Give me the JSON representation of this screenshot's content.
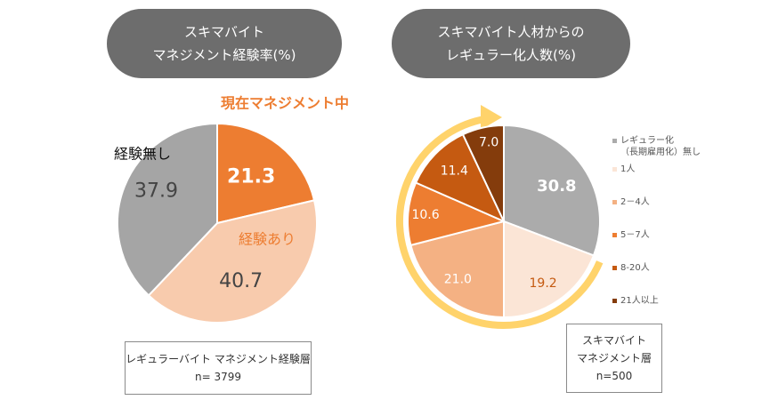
{
  "left_panel": {
    "title_line1": "スキマバイト",
    "title_line2": "マネジメント経験率(%)",
    "footnote_line1": "レギュラーバイト マネジメント経験層",
    "footnote_line2": "n= 3799"
  },
  "right_panel": {
    "title_line1": "スキマバイト人材からの",
    "title_line2": "レギュラー化人数(%)",
    "footnote_line1": "スキマバイト",
    "footnote_line2": "マネジメント層",
    "footnote_line3": "n=500"
  },
  "chart_data": [
    {
      "type": "pie",
      "title": "スキマバイト マネジメント経験率(%)",
      "slices": [
        {
          "label": "現在マネジメント中",
          "value": 21.3,
          "color": "#ed7d31"
        },
        {
          "label": "経験あり",
          "value": 40.7,
          "color": "#f8cbad"
        },
        {
          "label": "経験無し",
          "value": 37.9,
          "color": "#a5a5a5"
        }
      ],
      "annotations": [
        "現在マネジメント中",
        "経験あり",
        "経験無し"
      ],
      "note": "レギュラーバイト マネジメント経験層 n= 3799"
    },
    {
      "type": "pie",
      "title": "スキマバイト人材からのレギュラー化人数(%)",
      "slices": [
        {
          "label": "レギュラー化（長期雇用化）無し",
          "value": 30.8,
          "color": "#ababab"
        },
        {
          "label": "1人",
          "value": 19.2,
          "color": "#fbe5d6"
        },
        {
          "label": "2－4人",
          "value": 21.0,
          "color": "#f4b183"
        },
        {
          "label": "5－7人",
          "value": 10.6,
          "color": "#ed7d31"
        },
        {
          "label": "8-20人",
          "value": 11.4,
          "color": "#c55a11"
        },
        {
          "label": "21人以上",
          "value": 7.0,
          "color": "#843c0c"
        }
      ],
      "legend_position": "right",
      "arrow_color": "#ffd36b",
      "note": "スキマバイト マネジメント層 n=500"
    }
  ]
}
